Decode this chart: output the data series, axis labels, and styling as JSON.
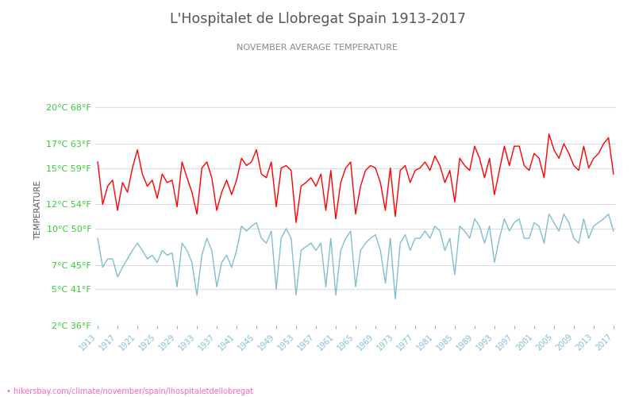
{
  "title": "L'Hospitalet de Llobregat Spain 1913-2017",
  "subtitle": "NOVEMBER AVERAGE TEMPERATURE",
  "ylabel": "TEMPERATURE",
  "url": "hikersbay.com/climate/november/spain/lhospitaletdellobregat",
  "years": [
    1913,
    1914,
    1915,
    1916,
    1917,
    1918,
    1919,
    1920,
    1921,
    1922,
    1923,
    1924,
    1925,
    1926,
    1927,
    1928,
    1929,
    1930,
    1931,
    1932,
    1933,
    1934,
    1935,
    1936,
    1937,
    1938,
    1939,
    1940,
    1941,
    1942,
    1943,
    1944,
    1945,
    1946,
    1947,
    1948,
    1949,
    1950,
    1951,
    1952,
    1953,
    1954,
    1955,
    1956,
    1957,
    1958,
    1959,
    1960,
    1961,
    1962,
    1963,
    1964,
    1965,
    1966,
    1967,
    1968,
    1969,
    1970,
    1971,
    1972,
    1973,
    1974,
    1975,
    1976,
    1977,
    1978,
    1979,
    1980,
    1981,
    1982,
    1983,
    1984,
    1985,
    1986,
    1987,
    1988,
    1989,
    1990,
    1991,
    1992,
    1993,
    1994,
    1995,
    1996,
    1997,
    1998,
    1999,
    2000,
    2001,
    2002,
    2003,
    2004,
    2005,
    2006,
    2007,
    2008,
    2009,
    2010,
    2011,
    2012,
    2013,
    2014,
    2015,
    2016,
    2017
  ],
  "day_temps": [
    15.5,
    12.0,
    13.5,
    14.0,
    11.5,
    13.8,
    13.0,
    15.0,
    16.5,
    14.5,
    13.5,
    14.0,
    12.5,
    14.5,
    13.8,
    14.0,
    11.8,
    15.5,
    14.2,
    13.0,
    11.2,
    15.0,
    15.5,
    14.2,
    11.5,
    13.0,
    14.0,
    12.8,
    14.0,
    15.8,
    15.2,
    15.5,
    16.5,
    14.5,
    14.2,
    15.5,
    11.8,
    15.0,
    15.2,
    14.8,
    10.5,
    13.5,
    13.8,
    14.2,
    13.5,
    14.5,
    11.5,
    14.8,
    10.8,
    13.8,
    15.0,
    15.5,
    11.2,
    13.5,
    14.8,
    15.2,
    15.0,
    13.8,
    11.5,
    15.0,
    11.0,
    14.8,
    15.2,
    13.8,
    14.8,
    15.0,
    15.5,
    14.8,
    16.0,
    15.2,
    13.8,
    14.8,
    12.2,
    15.8,
    15.2,
    14.8,
    16.8,
    15.8,
    14.2,
    15.8,
    12.8,
    14.8,
    16.8,
    15.2,
    16.8,
    16.8,
    15.2,
    14.8,
    16.2,
    15.8,
    14.2,
    17.8,
    16.5,
    15.8,
    17.0,
    16.2,
    15.2,
    14.8,
    16.8,
    15.0,
    15.8,
    16.2,
    17.0,
    17.5,
    14.5
  ],
  "night_temps": [
    9.2,
    6.8,
    7.5,
    7.5,
    6.0,
    6.8,
    7.5,
    8.2,
    8.8,
    8.2,
    7.5,
    7.8,
    7.2,
    8.2,
    7.8,
    8.0,
    5.2,
    8.8,
    8.2,
    7.2,
    4.5,
    7.8,
    9.2,
    8.2,
    5.2,
    7.2,
    7.8,
    6.8,
    8.2,
    10.2,
    9.8,
    10.2,
    10.5,
    9.2,
    8.8,
    9.8,
    5.0,
    9.2,
    10.0,
    9.2,
    4.5,
    8.2,
    8.5,
    8.8,
    8.2,
    8.8,
    5.2,
    9.2,
    4.5,
    8.2,
    9.2,
    9.8,
    5.2,
    8.2,
    8.8,
    9.2,
    9.5,
    8.2,
    5.5,
    9.2,
    4.2,
    8.8,
    9.5,
    8.2,
    9.2,
    9.2,
    9.8,
    9.2,
    10.2,
    9.8,
    8.2,
    9.2,
    6.2,
    10.2,
    9.8,
    9.2,
    10.8,
    10.2,
    8.8,
    10.2,
    7.2,
    9.2,
    10.8,
    9.8,
    10.5,
    10.8,
    9.2,
    9.2,
    10.5,
    10.2,
    8.8,
    11.2,
    10.5,
    9.8,
    11.2,
    10.5,
    9.2,
    8.8,
    10.8,
    9.2,
    10.2,
    10.5,
    10.8,
    11.2,
    9.8
  ],
  "yticks_c": [
    2,
    5,
    7,
    10,
    12,
    15,
    17,
    20
  ],
  "yticks_f": [
    36,
    41,
    45,
    50,
    54,
    59,
    63,
    68
  ],
  "ymin": 2,
  "ymax": 21,
  "day_color": "#ff0000",
  "night_color": "#7fbfcf",
  "title_color": "#555555",
  "subtitle_color": "#888888",
  "ylabel_color": "#555555",
  "tick_color": "#33cc33",
  "xtick_color": "#7fbfcf",
  "grid_color": "#dddddd",
  "bg_color": "#ffffff",
  "url_color": "#ff69b4",
  "url_text": "• hikersbay.com/climate/november/spain/lhospitaletdellobregat"
}
